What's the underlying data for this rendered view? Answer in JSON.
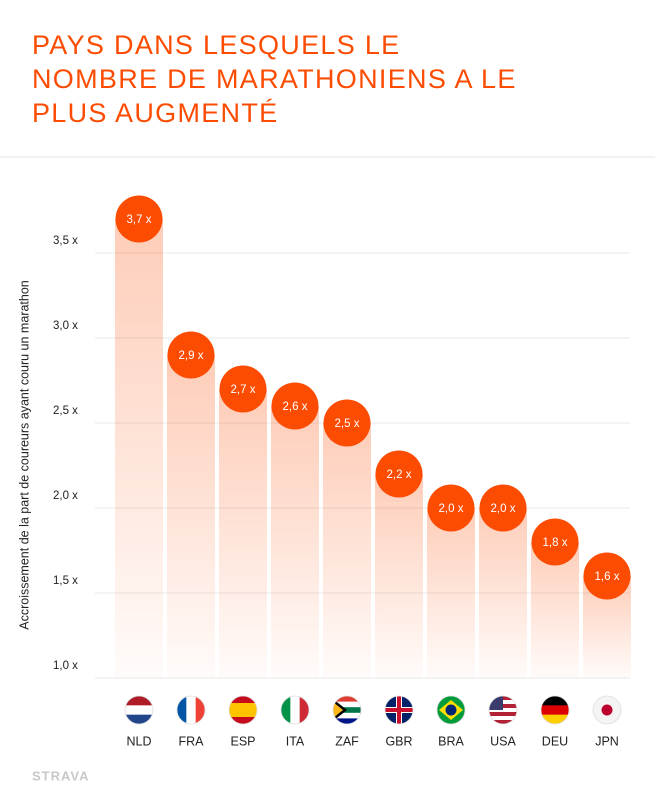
{
  "chart_data": {
    "type": "bar",
    "title": "PAYS DANS LESQUELS LE\nNOMBRE DE MARATHONIENS A LE\nPLUS AUGMENTÉ",
    "y_label": "Accroissement de la part de coureurs ayant couru un marathon",
    "categories": [
      "NLD",
      "FRA",
      "ESP",
      "ITA",
      "ZAF",
      "GBR",
      "BRA",
      "USA",
      "DEU",
      "JPN"
    ],
    "values": [
      3.7,
      2.9,
      2.7,
      2.6,
      2.5,
      2.2,
      2.0,
      2.0,
      1.8,
      1.6
    ],
    "value_labels": [
      "3,7 x",
      "2,9 x",
      "2,7 x",
      "2,6 x",
      "2,5 x",
      "2,2 x",
      "2,0 x",
      "2,0 x",
      "1,8 x",
      "1,6 x"
    ],
    "color": "#fc4c02",
    "ylim": [
      1.0,
      3.9
    ],
    "yticks": [
      {
        "value": 1.0,
        "label": "1,0 x"
      },
      {
        "value": 1.5,
        "label": "1,5 x"
      },
      {
        "value": 2.0,
        "label": "2,0 x"
      },
      {
        "value": 2.5,
        "label": "2,5 x"
      },
      {
        "value": 3.0,
        "label": "3,0 x"
      },
      {
        "value": 3.5,
        "label": "3,5 x"
      }
    ],
    "grid": true,
    "watermark": "STRAVA"
  }
}
